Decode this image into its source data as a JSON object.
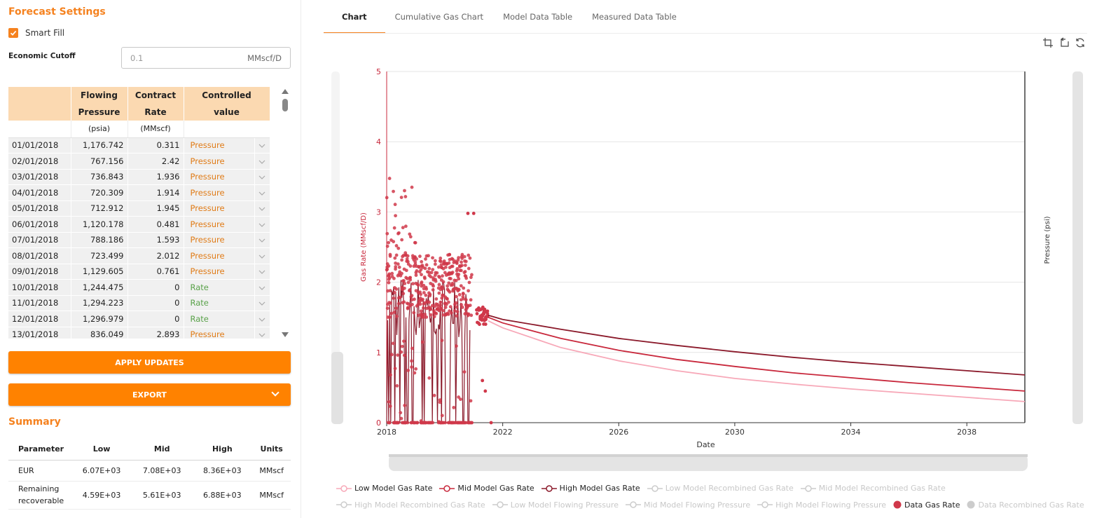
{
  "left": {
    "title": "Forecast Settings",
    "smart_fill": {
      "label": "Smart Fill",
      "checked": true
    },
    "economic_cutoff": {
      "label": "Economic Cutoff",
      "value": "0.1",
      "unit": "MMscf/D"
    },
    "table": {
      "headers": [
        {
          "line1": "",
          "line2": ""
        },
        {
          "line1": "Flowing",
          "line2": "Pressure"
        },
        {
          "line1": "Contract",
          "line2": "Rate"
        },
        {
          "line1": "Controlled",
          "line2": "value"
        }
      ],
      "units": [
        "",
        "(psia)",
        "(MMscf)",
        ""
      ],
      "rows": [
        {
          "date": "01/01/2018",
          "pressure": "1,176.742",
          "rate": "0.311",
          "controlled": "Pressure"
        },
        {
          "date": "02/01/2018",
          "pressure": "767.156",
          "rate": "2.42",
          "controlled": "Pressure"
        },
        {
          "date": "03/01/2018",
          "pressure": "736.843",
          "rate": "1.936",
          "controlled": "Pressure"
        },
        {
          "date": "04/01/2018",
          "pressure": "720.309",
          "rate": "1.914",
          "controlled": "Pressure"
        },
        {
          "date": "05/01/2018",
          "pressure": "712.912",
          "rate": "1.945",
          "controlled": "Pressure"
        },
        {
          "date": "06/01/2018",
          "pressure": "1,120.178",
          "rate": "0.481",
          "controlled": "Pressure"
        },
        {
          "date": "07/01/2018",
          "pressure": "788.186",
          "rate": "1.593",
          "controlled": "Pressure"
        },
        {
          "date": "08/01/2018",
          "pressure": "723.499",
          "rate": "2.012",
          "controlled": "Pressure"
        },
        {
          "date": "09/01/2018",
          "pressure": "1,129.605",
          "rate": "0.761",
          "controlled": "Pressure"
        },
        {
          "date": "10/01/2018",
          "pressure": "1,244.475",
          "rate": "0",
          "controlled": "Rate"
        },
        {
          "date": "11/01/2018",
          "pressure": "1,294.223",
          "rate": "0",
          "controlled": "Rate"
        },
        {
          "date": "12/01/2018",
          "pressure": "1,296.979",
          "rate": "0",
          "controlled": "Rate"
        },
        {
          "date": "13/01/2018",
          "pressure": "836.049",
          "rate": "2.893",
          "controlled": "Pressure"
        }
      ]
    },
    "apply_label": "APPLY UPDATES",
    "export_label": "EXPORT",
    "summary": {
      "title": "Summary",
      "headers": [
        "Parameter",
        "Low",
        "Mid",
        "High",
        "Units"
      ],
      "rows": [
        [
          "EUR",
          "6.07E+03",
          "7.08E+03",
          "8.36E+03",
          "MMscf"
        ],
        [
          "Remaining recoverable",
          "4.59E+03",
          "5.61E+03",
          "6.88E+03",
          "MMscf"
        ]
      ]
    }
  },
  "tabs": [
    "Chart",
    "Cumulative Gas Chart",
    "Model Data Table",
    "Measured Data Table"
  ],
  "active_tab": "Chart",
  "toolbar_icons": [
    "zoom-select-icon",
    "zoom-reset-icon",
    "refresh-icon"
  ],
  "colors": {
    "accent": "#ff8200",
    "low": "#f7a8b8",
    "mid": "#c8283c",
    "high": "#8b1a2b",
    "data": "#d0384a",
    "disabled": "#cccccc"
  },
  "chart_data": {
    "type": "line",
    "xlabel": "Date",
    "ylabel": "Gas Rate (MMscf/D)",
    "y2label": "Pressure (psi)",
    "xlim": [
      2018,
      2040
    ],
    "ylim": [
      0,
      5
    ],
    "x_ticks": [
      "2018",
      "2022",
      "2026",
      "2030",
      "2034",
      "2038"
    ],
    "y_ticks": [
      "0",
      "1",
      "2",
      "3",
      "4",
      "5"
    ],
    "grid": true,
    "legend_position": "bottom",
    "series": [
      {
        "name": "Low Model Gas Rate",
        "enabled": true,
        "x": [
          2021.5,
          2022,
          2024,
          2026,
          2028,
          2030,
          2032,
          2034,
          2036,
          2038,
          2040
        ],
        "values": [
          1.45,
          1.35,
          1.07,
          0.88,
          0.74,
          0.63,
          0.55,
          0.48,
          0.42,
          0.36,
          0.3
        ]
      },
      {
        "name": "Mid Model Gas Rate",
        "enabled": true,
        "x": [
          2021.5,
          2022,
          2024,
          2026,
          2028,
          2030,
          2032,
          2034,
          2036,
          2038,
          2040
        ],
        "values": [
          1.5,
          1.42,
          1.2,
          1.03,
          0.9,
          0.8,
          0.71,
          0.64,
          0.57,
          0.51,
          0.45
        ]
      },
      {
        "name": "High Model Gas Rate",
        "enabled": true,
        "x": [
          2021.5,
          2022,
          2024,
          2026,
          2028,
          2030,
          2032,
          2034,
          2036,
          2038,
          2040
        ],
        "values": [
          1.53,
          1.47,
          1.33,
          1.2,
          1.1,
          1.01,
          0.93,
          0.86,
          0.8,
          0.74,
          0.68
        ]
      },
      {
        "name": "Low Model Recombined Gas Rate",
        "enabled": false
      },
      {
        "name": "Mid Model Recombined Gas Rate",
        "enabled": false
      },
      {
        "name": "High Model Recombined Gas Rate",
        "enabled": false
      },
      {
        "name": "Low Model Flowing Pressure",
        "enabled": false
      },
      {
        "name": "Mid Model Flowing Pressure",
        "enabled": false
      },
      {
        "name": "High Model Flowing Pressure",
        "enabled": false
      },
      {
        "name": "Data Gas Rate",
        "enabled": true,
        "kind": "scatter",
        "x_range": [
          2018,
          2021.5
        ],
        "value_range": [
          0,
          3.5
        ]
      },
      {
        "name": "Data Recombined Gas Rate",
        "enabled": false,
        "kind": "scatter"
      }
    ]
  }
}
